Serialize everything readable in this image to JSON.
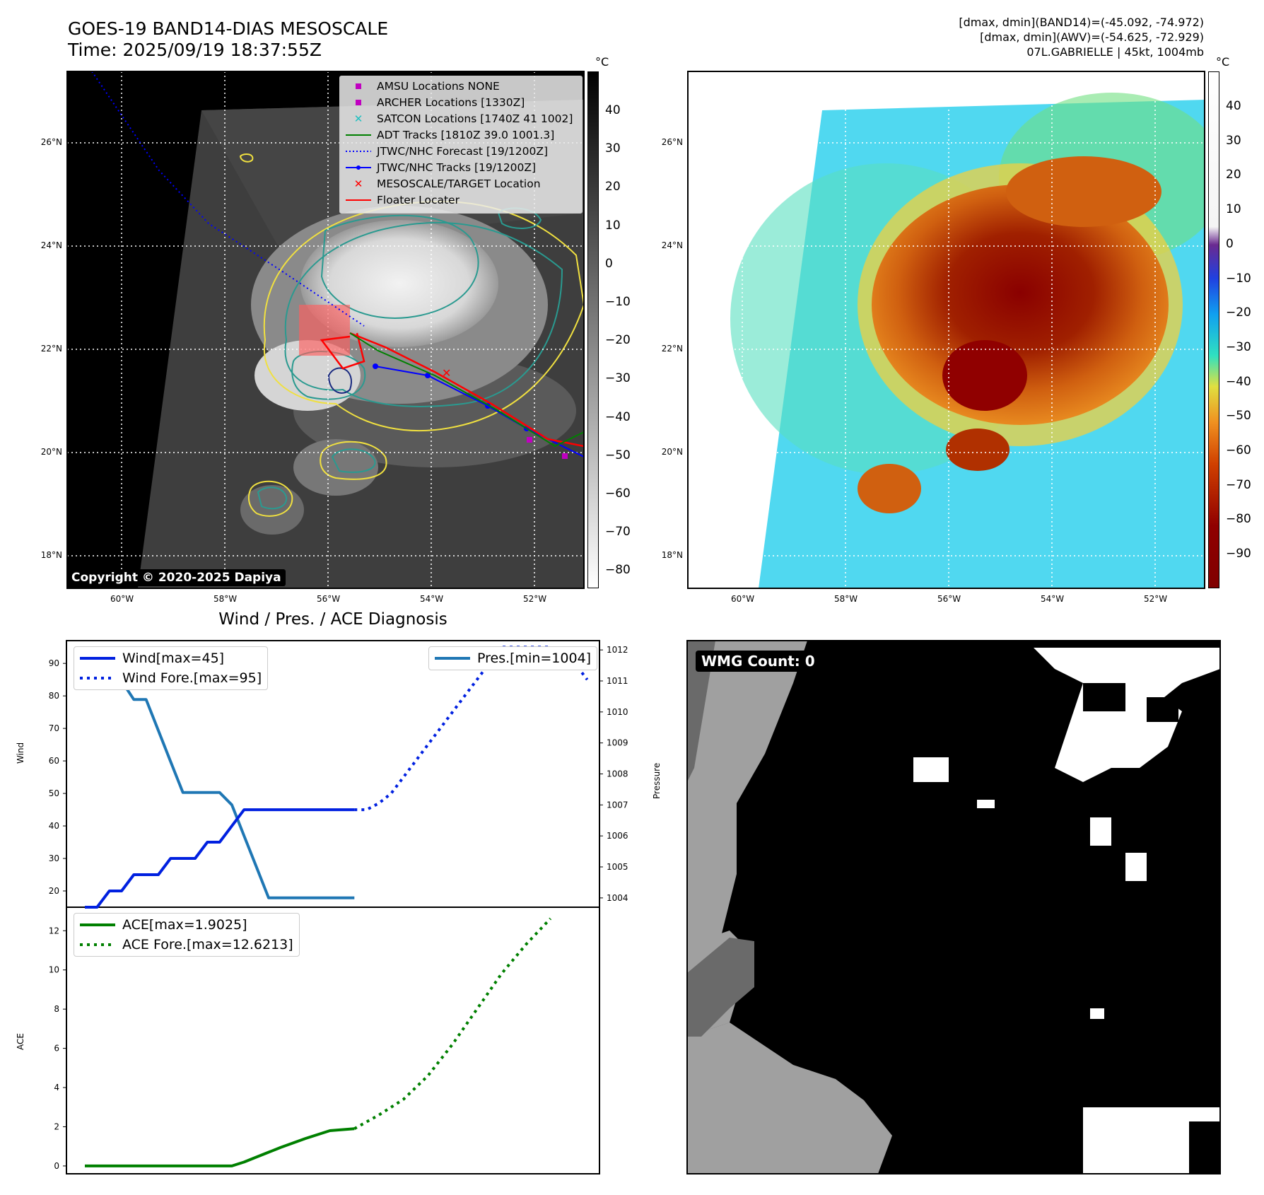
{
  "top_left": {
    "title_line1": "GOES-19 BAND14-DIAS MESOSCALE",
    "title_line2": "Time: 2025/09/19 18:37:55Z",
    "unit": "°C",
    "legend": [
      {
        "label": "AMSU Locations NONE",
        "marker": "square",
        "color": "#c000c0"
      },
      {
        "label": "ARCHER Locations [1330Z]",
        "marker": "square",
        "color": "#c000c0"
      },
      {
        "label": "SATCON Locations [1740Z 41 1002]",
        "marker": "x",
        "color": "#20c0c0"
      },
      {
        "label": "ADT Tracks [1810Z 39.0 1001.3]",
        "marker": "line",
        "color": "#008000"
      },
      {
        "label": "JTWC/NHC Forecast [19/1200Z]",
        "marker": "dotted",
        "color": "#0000ff"
      },
      {
        "label": "JTWC/NHC Tracks [19/1200Z]",
        "marker": "line-dot",
        "color": "#0000ff"
      },
      {
        "label": "MESOSCALE/TARGET Location",
        "marker": "x",
        "color": "#ff0000"
      },
      {
        "label": "Floater Locater",
        "marker": "line",
        "color": "#ff0000"
      }
    ],
    "copyright": "Copyright © 2020-2025 Dapiya",
    "colorbar_ticks": [
      "40",
      "30",
      "20",
      "10",
      "0",
      "−10",
      "−20",
      "−30",
      "−40",
      "−50",
      "−60",
      "−70",
      "−80"
    ],
    "lat_labels": [
      "26°N",
      "24°N",
      "22°N",
      "20°N",
      "18°N"
    ],
    "lon_labels": [
      "60°W",
      "58°W",
      "56°W",
      "54°W",
      "52°W"
    ]
  },
  "top_right": {
    "info_line1": "[dmax, dmin](BAND14)=(-45.092, -74.972)",
    "info_line2": "[dmax, dmin](AWV)=(-54.625, -72.929)",
    "info_line3": "07L.GABRIELLE | 45kt, 1004mb",
    "unit": "°C",
    "colorbar_ticks": [
      "40",
      "30",
      "20",
      "10",
      "0",
      "−10",
      "−20",
      "−30",
      "−40",
      "−50",
      "−60",
      "−70",
      "−80",
      "−90"
    ],
    "lat_labels": [
      "26°N",
      "24°N",
      "22°N",
      "20°N",
      "18°N"
    ],
    "lon_labels": [
      "60°W",
      "58°W",
      "56°W",
      "54°W",
      "52°W"
    ]
  },
  "diagnosis": {
    "title": "Wind / Pres. / ACE Diagnosis",
    "wind_ylabel": "Wind",
    "pres_ylabel": "Pressure",
    "ace_ylabel": "ACE",
    "legend_wind": "Wind[max=45]",
    "legend_wind_fore": "Wind Fore.[max=95]",
    "legend_pres": "Pres.[min=1004]",
    "legend_ace": "ACE[max=1.9025]",
    "legend_ace_fore": "ACE Fore.[max=12.6213]"
  },
  "wmg": {
    "label": "WMG Count: 0"
  },
  "chart_data": [
    {
      "type": "line",
      "name": "wind",
      "ylim": [
        15,
        97
      ],
      "ticks": [
        20,
        30,
        40,
        50,
        60,
        70,
        80,
        90
      ],
      "x": [
        0,
        1,
        2,
        3,
        4,
        5,
        6,
        7,
        8,
        9,
        10,
        11,
        12,
        13,
        14,
        15,
        16,
        17,
        18,
        19,
        20,
        21,
        22,
        23,
        24,
        25,
        26,
        27,
        28,
        29,
        30,
        31,
        32,
        33,
        34,
        35,
        36,
        37,
        38,
        39,
        40
      ],
      "series": [
        {
          "name": "Wind[max=45]",
          "color": "#0020e0",
          "style": "solid",
          "points": [
            [
              0,
              15
            ],
            [
              1,
              15
            ],
            [
              2,
              20
            ],
            [
              3,
              20
            ],
            [
              4,
              25
            ],
            [
              5,
              25
            ],
            [
              6,
              25
            ],
            [
              7,
              30
            ],
            [
              8,
              30
            ],
            [
              9,
              30
            ],
            [
              10,
              35
            ],
            [
              11,
              35
            ],
            [
              12,
              40
            ],
            [
              13,
              45
            ],
            [
              14,
              45
            ],
            [
              15,
              45
            ],
            [
              16,
              45
            ],
            [
              17,
              45
            ],
            [
              18,
              45
            ],
            [
              19,
              45
            ],
            [
              20,
              45
            ],
            [
              21,
              45
            ],
            [
              22,
              45
            ]
          ]
        },
        {
          "name": "Wind Fore.[max=95]",
          "color": "#0020e0",
          "style": "dotted",
          "points": [
            [
              22,
              45
            ],
            [
              23,
              45
            ],
            [
              24,
              47
            ],
            [
              25,
              50
            ],
            [
              26,
              55
            ],
            [
              27,
              60
            ],
            [
              28,
              65
            ],
            [
              29,
              70
            ],
            [
              30,
              75
            ],
            [
              31,
              80
            ],
            [
              32,
              85
            ],
            [
              33,
              90
            ],
            [
              34,
              95
            ],
            [
              35,
              95
            ],
            [
              36,
              95
            ],
            [
              37,
              95
            ],
            [
              38,
              95
            ],
            [
              39,
              90
            ],
            [
              40,
              90
            ],
            [
              41,
              85
            ]
          ]
        }
      ]
    },
    {
      "type": "line",
      "name": "pressure",
      "ylim": [
        1003.7,
        1012.3
      ],
      "ticks": [
        1004,
        1005,
        1006,
        1007,
        1008,
        1009,
        1010,
        1011,
        1012
      ],
      "series": [
        {
          "name": "Pres.[min=1004]",
          "color": "#1f77b4",
          "style": "solid",
          "points": [
            [
              0,
              1012
            ],
            [
              1,
              1012
            ],
            [
              2,
              1011
            ],
            [
              3,
              1011
            ],
            [
              4,
              1010.4
            ],
            [
              5,
              1010.4
            ],
            [
              6,
              1009.4
            ],
            [
              7,
              1008.4
            ],
            [
              8,
              1007.4
            ],
            [
              9,
              1007.4
            ],
            [
              10,
              1007.4
            ],
            [
              11,
              1007.4
            ],
            [
              12,
              1007
            ],
            [
              13,
              1006
            ],
            [
              14,
              1005
            ],
            [
              15,
              1004
            ],
            [
              16,
              1004
            ],
            [
              17,
              1004
            ],
            [
              18,
              1004
            ],
            [
              19,
              1004
            ],
            [
              20,
              1004
            ],
            [
              21,
              1004
            ],
            [
              22,
              1004
            ]
          ]
        }
      ]
    },
    {
      "type": "line",
      "name": "ace",
      "ylim": [
        -0.4,
        13.2
      ],
      "ticks": [
        0,
        2,
        4,
        6,
        8,
        10,
        12
      ],
      "series": [
        {
          "name": "ACE[max=1.9025]",
          "color": "#008000",
          "style": "solid",
          "points": [
            [
              0,
              0
            ],
            [
              2,
              0
            ],
            [
              4,
              0
            ],
            [
              6,
              0
            ],
            [
              8,
              0
            ],
            [
              10,
              0
            ],
            [
              12,
              0
            ],
            [
              13,
              0.2
            ],
            [
              14,
              0.45
            ],
            [
              16,
              0.95
            ],
            [
              18,
              1.4
            ],
            [
              20,
              1.8
            ],
            [
              22,
              1.9025
            ]
          ]
        },
        {
          "name": "ACE Fore.[max=12.6213]",
          "color": "#008000",
          "style": "dotted",
          "points": [
            [
              22,
              1.9025
            ],
            [
              24,
              2.6
            ],
            [
              26,
              3.4
            ],
            [
              28,
              4.6
            ],
            [
              30,
              6.2
            ],
            [
              32,
              8.0
            ],
            [
              34,
              9.8
            ],
            [
              36,
              11.3
            ],
            [
              38,
              12.6213
            ]
          ]
        }
      ]
    }
  ]
}
